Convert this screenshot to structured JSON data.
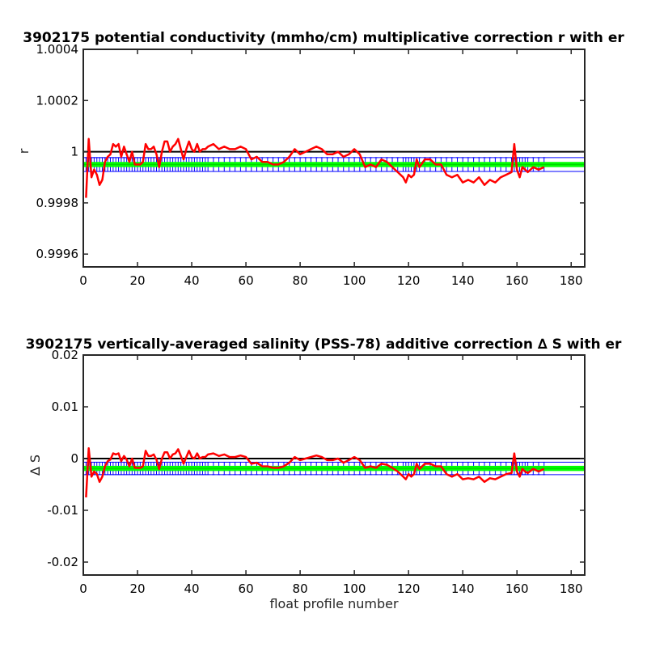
{
  "colors": {
    "series": "#ff0000",
    "reference": "#000000",
    "error_band": "#00ff00",
    "error_bars": "#0000ff"
  },
  "chart_data": [
    {
      "type": "line",
      "title": "3902175 potential conductivity (mmho/cm) multiplicative correction r with er",
      "xlabel": "",
      "ylabel": "r",
      "xlim": [
        0,
        185
      ],
      "ylim": [
        0.99955,
        1.0004
      ],
      "xticks": [
        0,
        20,
        40,
        60,
        80,
        100,
        120,
        140,
        160,
        180
      ],
      "xtick_labels": [
        "0",
        "20",
        "40",
        "60",
        "80",
        "100",
        "120",
        "140",
        "160",
        "180"
      ],
      "yticks": [
        0.9996,
        0.9998,
        1.0,
        1.0002,
        1.0004
      ],
      "ytick_labels": [
        "0.9996",
        "0.9998",
        "1",
        "1.0002",
        "1.0004"
      ],
      "reference_line": 1.0,
      "band_center": 0.99995,
      "band_half_width": 1e-05,
      "errorbar_half_width": 2.7e-05,
      "series": [
        {
          "x": [
            1,
            2,
            3,
            4,
            5,
            6,
            7,
            8,
            9,
            10,
            11,
            12,
            13,
            14,
            15,
            16,
            17,
            18,
            19,
            20,
            21,
            22,
            23,
            24,
            25,
            26,
            27,
            28,
            29,
            30,
            31,
            32,
            33,
            34,
            35,
            36,
            37,
            38,
            39,
            40,
            41,
            42,
            43,
            44,
            45,
            46,
            48,
            50,
            52,
            54,
            56,
            58,
            60,
            62,
            64,
            66,
            68,
            70,
            72,
            74,
            76,
            78,
            80,
            82,
            84,
            86,
            88,
            90,
            92,
            94,
            96,
            98,
            100,
            102,
            104,
            106,
            108,
            110,
            112,
            114,
            116,
            118,
            119,
            120,
            121,
            122,
            123,
            124,
            126,
            128,
            130,
            132,
            134,
            136,
            138,
            140,
            142,
            144,
            146,
            148,
            150,
            152,
            154,
            156,
            158,
            159,
            160,
            161,
            162,
            163,
            164,
            166,
            168,
            170
          ],
          "y": [
            0.99982,
            1.00005,
            0.9999,
            0.99993,
            0.99991,
            0.99987,
            0.99989,
            0.99996,
            0.99998,
            0.99999,
            1.00003,
            1.00002,
            1.00003,
            0.99998,
            1.00002,
            0.99999,
            0.99996,
            1.0,
            0.99995,
            0.99995,
            0.99995,
            0.99996,
            1.00003,
            1.00001,
            1.00001,
            1.00002,
            0.99999,
            0.99994,
            1.0,
            1.00004,
            1.00004,
            1.0,
            1.00002,
            1.00003,
            1.00005,
            1.00001,
            0.99997,
            1.00001,
            1.00004,
            1.00001,
            1.0,
            1.00003,
            1.0,
            1.00001,
            1.00001,
            1.00002,
            1.00003,
            1.00001,
            1.00002,
            1.00001,
            1.00001,
            1.00002,
            1.00001,
            0.99997,
            0.99998,
            0.99996,
            0.99996,
            0.99995,
            0.99995,
            0.99996,
            0.99998,
            1.00001,
            0.99999,
            1.0,
            1.00001,
            1.00002,
            1.00001,
            0.99999,
            0.99999,
            1.0,
            0.99998,
            0.99999,
            1.00001,
            0.99999,
            0.99994,
            0.99995,
            0.99994,
            0.99997,
            0.99996,
            0.99994,
            0.99992,
            0.9999,
            0.99988,
            0.99991,
            0.9999,
            0.99991,
            0.99997,
            0.99994,
            0.99997,
            0.99997,
            0.99995,
            0.99995,
            0.99991,
            0.9999,
            0.99991,
            0.99988,
            0.99989,
            0.99988,
            0.9999,
            0.99987,
            0.99989,
            0.99988,
            0.9999,
            0.99991,
            0.99992,
            1.00003,
            0.99993,
            0.9999,
            0.99994,
            0.99993,
            0.99992,
            0.99994,
            0.99993,
            0.99994
          ]
        }
      ]
    },
    {
      "type": "line",
      "title": "3902175 vertically-averaged salinity (PSS-78) additive correction ∆ S with er",
      "xlabel": "float profile number",
      "ylabel": "∆ S",
      "xlim": [
        0,
        185
      ],
      "ylim": [
        -0.0225,
        0.02
      ],
      "xticks": [
        0,
        20,
        40,
        60,
        80,
        100,
        120,
        140,
        160,
        180
      ],
      "xtick_labels": [
        "0",
        "20",
        "40",
        "60",
        "80",
        "100",
        "120",
        "140",
        "160",
        "180"
      ],
      "yticks": [
        -0.02,
        -0.01,
        0,
        0.01,
        0.02
      ],
      "ytick_labels": [
        "-0.02",
        "-0.01",
        "0",
        "0.01",
        "0.02"
      ],
      "reference_line": 0,
      "band_center": -0.0019,
      "band_half_width": 0.0005,
      "errorbar_half_width": 0.0012,
      "series": [
        {
          "x": [
            1,
            2,
            3,
            4,
            5,
            6,
            7,
            8,
            9,
            10,
            11,
            12,
            13,
            14,
            15,
            16,
            17,
            18,
            19,
            20,
            21,
            22,
            23,
            24,
            25,
            26,
            27,
            28,
            29,
            30,
            31,
            32,
            33,
            34,
            35,
            36,
            37,
            38,
            39,
            40,
            41,
            42,
            43,
            44,
            45,
            46,
            48,
            50,
            52,
            54,
            56,
            58,
            60,
            62,
            64,
            66,
            68,
            70,
            72,
            74,
            76,
            78,
            80,
            82,
            84,
            86,
            88,
            90,
            92,
            94,
            96,
            98,
            100,
            102,
            104,
            106,
            108,
            110,
            112,
            114,
            116,
            118,
            119,
            120,
            121,
            122,
            123,
            124,
            126,
            128,
            130,
            132,
            134,
            136,
            138,
            140,
            142,
            144,
            146,
            148,
            150,
            152,
            154,
            156,
            158,
            159,
            160,
            161,
            162,
            163,
            164,
            166,
            168,
            170
          ],
          "y": [
            -0.0075,
            0.002,
            -0.0035,
            -0.0025,
            -0.003,
            -0.0045,
            -0.0035,
            -0.0015,
            -0.0005,
            -0.0002,
            0.001,
            0.0008,
            0.001,
            -0.0005,
            0.0005,
            -0.0002,
            -0.0015,
            0.0,
            -0.0018,
            -0.0018,
            -0.0018,
            -0.0015,
            0.0015,
            0.0005,
            0.0005,
            0.0008,
            -0.0002,
            -0.002,
            0.0,
            0.0012,
            0.0012,
            0.0,
            0.0008,
            0.001,
            0.0018,
            0.0005,
            -0.001,
            0.0003,
            0.0015,
            0.0003,
            0.0,
            0.001,
            0.0,
            0.0003,
            0.0003,
            0.0008,
            0.001,
            0.0005,
            0.0008,
            0.0003,
            0.0003,
            0.0006,
            0.0003,
            -0.001,
            -0.0008,
            -0.0015,
            -0.0015,
            -0.0018,
            -0.0018,
            -0.0015,
            -0.0008,
            0.0003,
            -0.0003,
            0.0,
            0.0003,
            0.0006,
            0.0003,
            -0.0003,
            -0.0003,
            0.0,
            -0.0008,
            -0.0003,
            0.0003,
            -0.0003,
            -0.0018,
            -0.0015,
            -0.0018,
            -0.001,
            -0.0012,
            -0.0018,
            -0.0025,
            -0.0035,
            -0.004,
            -0.003,
            -0.0035,
            -0.003,
            -0.001,
            -0.002,
            -0.001,
            -0.001,
            -0.0015,
            -0.0015,
            -0.003,
            -0.0035,
            -0.003,
            -0.004,
            -0.0038,
            -0.004,
            -0.0035,
            -0.0045,
            -0.0038,
            -0.004,
            -0.0035,
            -0.003,
            -0.0028,
            0.001,
            -0.0025,
            -0.0035,
            -0.002,
            -0.0025,
            -0.0028,
            -0.002,
            -0.0025,
            -0.002
          ]
        }
      ]
    }
  ]
}
